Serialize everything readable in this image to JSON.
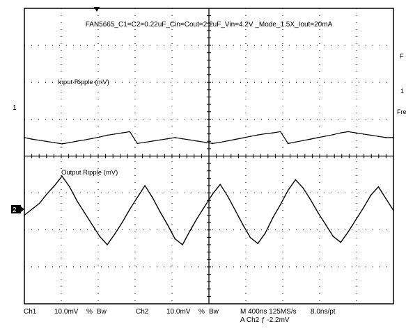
{
  "chart_data": {
    "type": "line",
    "title": "FAN5665_C1=C2=0.22uF_Cin=Cout=2.2uF_Vin=4.2V _Mode_1.5X_Iout=20mA",
    "grid": true,
    "x_divisions": 10,
    "y_divisions": 8,
    "series": [
      {
        "name": "Input Ripple (mV)",
        "channel_marker": "1",
        "y": [
          0.0,
          -0.25,
          -0.45,
          -0.65,
          -0.85,
          -1.05,
          -0.85,
          -0.6,
          -0.4,
          -0.15,
          0.1,
          0.4,
          0.6,
          0.8,
          1.0,
          -1.0,
          -0.8,
          -0.6,
          -0.4,
          -0.2,
          0.0,
          -0.2,
          -0.4,
          -0.6,
          -0.8,
          -1.0,
          -0.8,
          -0.55,
          -0.3,
          -0.05,
          0.2,
          0.45,
          0.65,
          0.8,
          1.0,
          -1.0,
          -0.75,
          -0.5,
          -0.25,
          0.0,
          0.25,
          0.5,
          0.8,
          1.0,
          0.8,
          0.6,
          0.4,
          0.2,
          0.0,
          0.0
        ]
      },
      {
        "name": "Output Ripple (mV)",
        "channel_marker": "2",
        "y": [
          0.0,
          0.5,
          1.0,
          1.8,
          2.5,
          3.3,
          2.4,
          1.2,
          0.2,
          -0.8,
          -1.8,
          -2.5,
          -1.6,
          -0.6,
          0.5,
          1.5,
          2.5,
          1.5,
          0.3,
          -0.8,
          -2.0,
          -2.5,
          -1.3,
          -0.2,
          0.8,
          1.8,
          2.6,
          1.6,
          0.4,
          -0.8,
          -1.9,
          -2.4,
          -1.5,
          -0.2,
          0.9,
          2.1,
          3.0,
          2.3,
          1.3,
          0.2,
          -0.8,
          -1.8,
          -2.3,
          -1.4,
          -0.4,
          0.6,
          1.7,
          2.4,
          1.4,
          0.4
        ]
      }
    ]
  },
  "labels": {
    "frequency_cut": "Fre",
    "cut_top": "F",
    "cut_mid": "1"
  },
  "status": {
    "ch1": "Ch1",
    "ch1_scale": "10.0mV",
    "ch1_coupling": "%",
    "ch1_bw": "Bw",
    "ch2": "Ch2",
    "ch2_scale": "10.0mV",
    "ch2_coupling": "%",
    "ch2_bw": "Bw",
    "timebase": "M 400ns 125MS/s",
    "sample_interval": "8.0ns/pt",
    "trigger": "A  Ch2  ƒ  -2.2mV"
  }
}
